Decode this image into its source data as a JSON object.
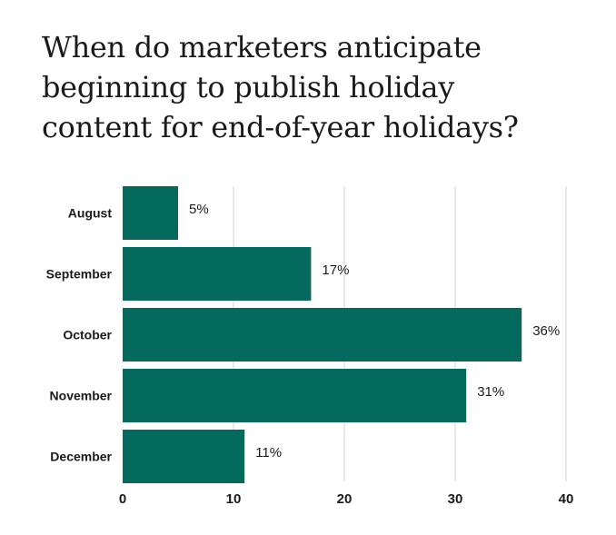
{
  "title_lines": [
    "When do marketers anticipate",
    "beginning to publish holiday",
    "content for end-of-year holidays?"
  ],
  "colors": {
    "bar": "#056a5e",
    "grid": "#e2e2e2",
    "text": "#1a1a1a"
  },
  "chart_data": {
    "type": "bar",
    "orientation": "horizontal",
    "title": "When do marketers anticipate beginning to publish holiday content for end-of-year holidays?",
    "categories": [
      "August",
      "September",
      "October",
      "November",
      "December"
    ],
    "values": [
      5,
      17,
      36,
      31,
      11
    ],
    "value_labels": [
      "5%",
      "17%",
      "36%",
      "31%",
      "11%"
    ],
    "xlim": [
      0,
      40
    ],
    "xticks": [
      0,
      10,
      20,
      30,
      40
    ],
    "xlabel": "",
    "ylabel": "",
    "grid": true
  }
}
